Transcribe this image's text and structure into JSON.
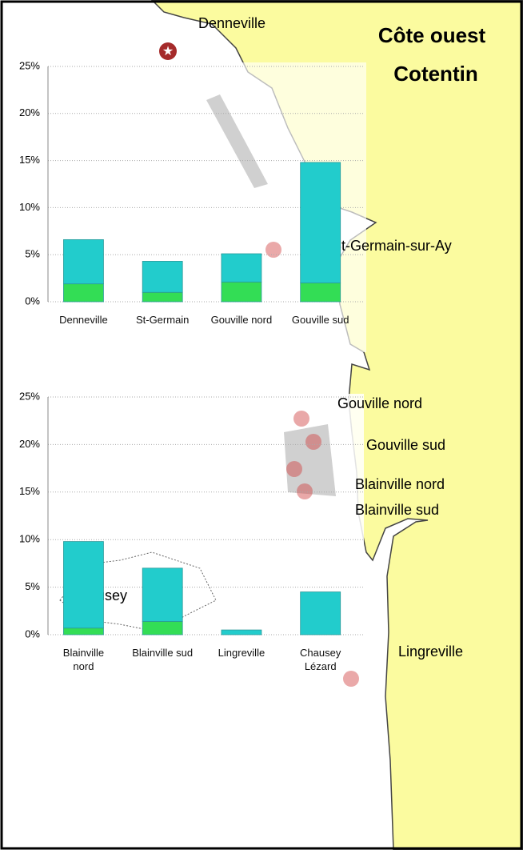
{
  "map": {
    "title": [
      "Côte ouest",
      "Cotentin"
    ],
    "places": [
      "Denneville",
      "St-Germain-sur-Ay",
      "Gouville nord",
      "Gouville sud",
      "Blainville nord",
      "Blainville sud",
      "Lingreville",
      "Chausey"
    ]
  },
  "chart_data": [
    {
      "type": "bar",
      "stacked": true,
      "categories": [
        "Denneville",
        "St-Germain",
        "Gouville nord",
        "Gouville sud"
      ],
      "series": [
        {
          "color": "#33dd55",
          "values": [
            1.9,
            1.0,
            2.1,
            2.0
          ]
        },
        {
          "color": "#22cccc",
          "values": [
            4.7,
            3.3,
            3.0,
            12.8
          ]
        }
      ],
      "ylim": [
        0,
        25
      ],
      "yticks": [
        {
          "value": 0,
          "label": "0%"
        },
        {
          "value": 5,
          "label": "5%"
        },
        {
          "value": 10,
          "label": "10%"
        },
        {
          "value": 15,
          "label": "15%"
        },
        {
          "value": 20,
          "label": "20%"
        },
        {
          "value": 25,
          "label": "25%"
        }
      ],
      "grid": true
    },
    {
      "type": "bar",
      "stacked": true,
      "categories": [
        "Blainville nord",
        "Blainville sud",
        "Lingreville",
        "Chausey Lézard"
      ],
      "series": [
        {
          "color": "#33dd55",
          "values": [
            0.7,
            1.4,
            0,
            0
          ]
        },
        {
          "color": "#22cccc",
          "values": [
            9.1,
            5.6,
            0.5,
            4.5
          ]
        }
      ],
      "ylim": [
        0,
        25
      ],
      "yticks": [
        {
          "value": 0,
          "label": "0%"
        },
        {
          "value": 5,
          "label": "5%"
        },
        {
          "value": 10,
          "label": "10%"
        },
        {
          "value": 15,
          "label": "15%"
        },
        {
          "value": 20,
          "label": "20%"
        },
        {
          "value": 25,
          "label": "25%"
        }
      ],
      "grid": true
    }
  ]
}
